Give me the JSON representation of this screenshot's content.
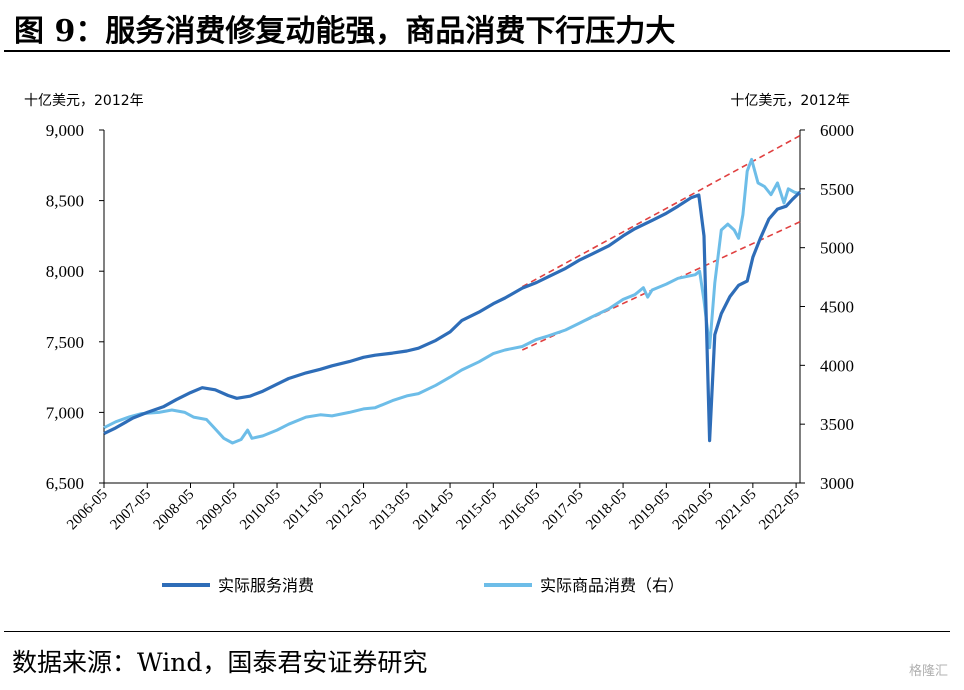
{
  "figure": {
    "title": "图 9：服务消费修复动能强，商品消费下行压力大",
    "source": "数据来源：Wind，国泰君安证券研究",
    "watermark": "格隆汇"
  },
  "colors": {
    "services": "#2e6db8",
    "goods": "#6dbde8",
    "trend": "#e04040",
    "axis": "#000000"
  },
  "chart_data": {
    "type": "line",
    "left_unit": "十亿美元，2012年",
    "right_unit": "十亿美元，2012年",
    "left_ylim": [
      6500,
      9000
    ],
    "right_ylim": [
      3000,
      6000
    ],
    "left_ticks": [
      "6,500",
      "7,000",
      "7,500",
      "8,000",
      "8,500",
      "9,000"
    ],
    "left_tick_values": [
      6500,
      7000,
      7500,
      8000,
      8500,
      9000
    ],
    "right_ticks": [
      "3000",
      "3500",
      "4000",
      "4500",
      "5000",
      "5500",
      "6000"
    ],
    "right_tick_values": [
      3000,
      3500,
      4000,
      4500,
      5000,
      5500,
      6000
    ],
    "x_ticks": [
      "2006-05",
      "2007-05",
      "2008-05",
      "2009-05",
      "2010-05",
      "2011-05",
      "2012-05",
      "2013-05",
      "2014-05",
      "2015-05",
      "2016-05",
      "2017-05",
      "2018-05",
      "2019-05",
      "2020-05",
      "2021-05",
      "2022-05"
    ],
    "x_range": [
      2006.33,
      2022.42
    ],
    "series": [
      {
        "name": "实际服务消费",
        "axis": "left",
        "points": [
          [
            2006.33,
            6850
          ],
          [
            2006.6,
            6890
          ],
          [
            2007.0,
            6960
          ],
          [
            2007.33,
            7000
          ],
          [
            2007.7,
            7040
          ],
          [
            2008.0,
            7090
          ],
          [
            2008.33,
            7140
          ],
          [
            2008.6,
            7175
          ],
          [
            2008.9,
            7160
          ],
          [
            2009.2,
            7120
          ],
          [
            2009.4,
            7100
          ],
          [
            2009.7,
            7115
          ],
          [
            2010.0,
            7150
          ],
          [
            2010.33,
            7200
          ],
          [
            2010.6,
            7240
          ],
          [
            2011.0,
            7280
          ],
          [
            2011.33,
            7305
          ],
          [
            2011.6,
            7330
          ],
          [
            2012.0,
            7360
          ],
          [
            2012.33,
            7390
          ],
          [
            2012.6,
            7405
          ],
          [
            2013.0,
            7420
          ],
          [
            2013.33,
            7435
          ],
          [
            2013.6,
            7455
          ],
          [
            2014.0,
            7510
          ],
          [
            2014.33,
            7570
          ],
          [
            2014.6,
            7650
          ],
          [
            2015.0,
            7710
          ],
          [
            2015.33,
            7770
          ],
          [
            2015.6,
            7810
          ],
          [
            2016.0,
            7880
          ],
          [
            2016.33,
            7920
          ],
          [
            2016.6,
            7960
          ],
          [
            2017.0,
            8020
          ],
          [
            2017.33,
            8080
          ],
          [
            2017.6,
            8120
          ],
          [
            2018.0,
            8180
          ],
          [
            2018.33,
            8250
          ],
          [
            2018.6,
            8300
          ],
          [
            2019.0,
            8360
          ],
          [
            2019.33,
            8410
          ],
          [
            2019.6,
            8460
          ],
          [
            2019.9,
            8520
          ],
          [
            2020.08,
            8540
          ],
          [
            2020.2,
            8250
          ],
          [
            2020.33,
            6800
          ],
          [
            2020.45,
            7550
          ],
          [
            2020.6,
            7700
          ],
          [
            2020.8,
            7820
          ],
          [
            2021.0,
            7900
          ],
          [
            2021.2,
            7930
          ],
          [
            2021.33,
            8100
          ],
          [
            2021.5,
            8230
          ],
          [
            2021.7,
            8370
          ],
          [
            2021.9,
            8440
          ],
          [
            2022.1,
            8460
          ],
          [
            2022.25,
            8510
          ],
          [
            2022.42,
            8560
          ]
        ]
      },
      {
        "name": "实际商品消费（右）",
        "axis": "right",
        "points": [
          [
            2006.33,
            3470
          ],
          [
            2006.6,
            3520
          ],
          [
            2006.9,
            3560
          ],
          [
            2007.2,
            3590
          ],
          [
            2007.6,
            3600
          ],
          [
            2007.9,
            3620
          ],
          [
            2008.2,
            3600
          ],
          [
            2008.4,
            3560
          ],
          [
            2008.7,
            3540
          ],
          [
            2008.9,
            3460
          ],
          [
            2009.1,
            3380
          ],
          [
            2009.3,
            3340
          ],
          [
            2009.5,
            3370
          ],
          [
            2009.65,
            3450
          ],
          [
            2009.75,
            3380
          ],
          [
            2010.0,
            3400
          ],
          [
            2010.33,
            3450
          ],
          [
            2010.6,
            3500
          ],
          [
            2011.0,
            3560
          ],
          [
            2011.33,
            3580
          ],
          [
            2011.6,
            3570
          ],
          [
            2012.0,
            3600
          ],
          [
            2012.33,
            3630
          ],
          [
            2012.6,
            3640
          ],
          [
            2013.0,
            3700
          ],
          [
            2013.33,
            3740
          ],
          [
            2013.6,
            3760
          ],
          [
            2014.0,
            3830
          ],
          [
            2014.33,
            3900
          ],
          [
            2014.6,
            3960
          ],
          [
            2015.0,
            4030
          ],
          [
            2015.33,
            4100
          ],
          [
            2015.6,
            4130
          ],
          [
            2016.0,
            4160
          ],
          [
            2016.33,
            4220
          ],
          [
            2016.6,
            4250
          ],
          [
            2017.0,
            4300
          ],
          [
            2017.33,
            4360
          ],
          [
            2017.6,
            4410
          ],
          [
            2018.0,
            4480
          ],
          [
            2018.33,
            4560
          ],
          [
            2018.6,
            4600
          ],
          [
            2018.8,
            4660
          ],
          [
            2018.9,
            4580
          ],
          [
            2019.0,
            4640
          ],
          [
            2019.33,
            4690
          ],
          [
            2019.6,
            4740
          ],
          [
            2020.0,
            4770
          ],
          [
            2020.1,
            4800
          ],
          [
            2020.2,
            4550
          ],
          [
            2020.33,
            4150
          ],
          [
            2020.45,
            4700
          ],
          [
            2020.6,
            5150
          ],
          [
            2020.75,
            5200
          ],
          [
            2020.9,
            5150
          ],
          [
            2021.0,
            5080
          ],
          [
            2021.1,
            5280
          ],
          [
            2021.2,
            5650
          ],
          [
            2021.3,
            5750
          ],
          [
            2021.45,
            5550
          ],
          [
            2021.6,
            5520
          ],
          [
            2021.75,
            5450
          ],
          [
            2021.9,
            5550
          ],
          [
            2022.05,
            5380
          ],
          [
            2022.15,
            5500
          ],
          [
            2022.3,
            5470
          ],
          [
            2022.42,
            5460
          ]
        ]
      }
    ],
    "trend_lines": [
      {
        "axis": "left",
        "from": [
          2016.0,
          7890
        ],
        "to": [
          2022.42,
          8960
        ]
      },
      {
        "axis": "right",
        "from": [
          2016.0,
          4130
        ],
        "to": [
          2022.42,
          5220
        ]
      }
    ],
    "legend": {
      "placement": "bottom",
      "items": [
        {
          "label": "实际服务消费",
          "color": "#2e6db8"
        },
        {
          "label": "实际商品消费（右）",
          "color": "#6dbde8"
        }
      ]
    }
  }
}
